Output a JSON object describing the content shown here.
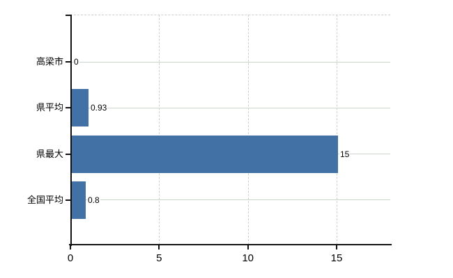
{
  "chart_data": {
    "type": "bar",
    "orientation": "horizontal",
    "title": "",
    "xlabel": "",
    "ylabel": "",
    "categories": [
      "高梁市",
      "県平均",
      "県最大",
      "全国平均"
    ],
    "values": [
      0,
      0.93,
      15,
      0.8
    ],
    "value_labels": [
      "0",
      "0.93",
      "15",
      "0.8"
    ],
    "x_ticks": [
      0,
      5,
      10,
      15
    ],
    "x_tick_labels": [
      "0",
      "5",
      "10",
      "15"
    ],
    "xlim": [
      0,
      18
    ],
    "grid": "on",
    "legend": "none",
    "colors": {
      "bar": "#4271a6",
      "axis": "#111111",
      "gridline_h": "#ccd5cc",
      "gridline_v": "#c9d1c9",
      "text": "#000000",
      "background": "#ffffff"
    }
  }
}
